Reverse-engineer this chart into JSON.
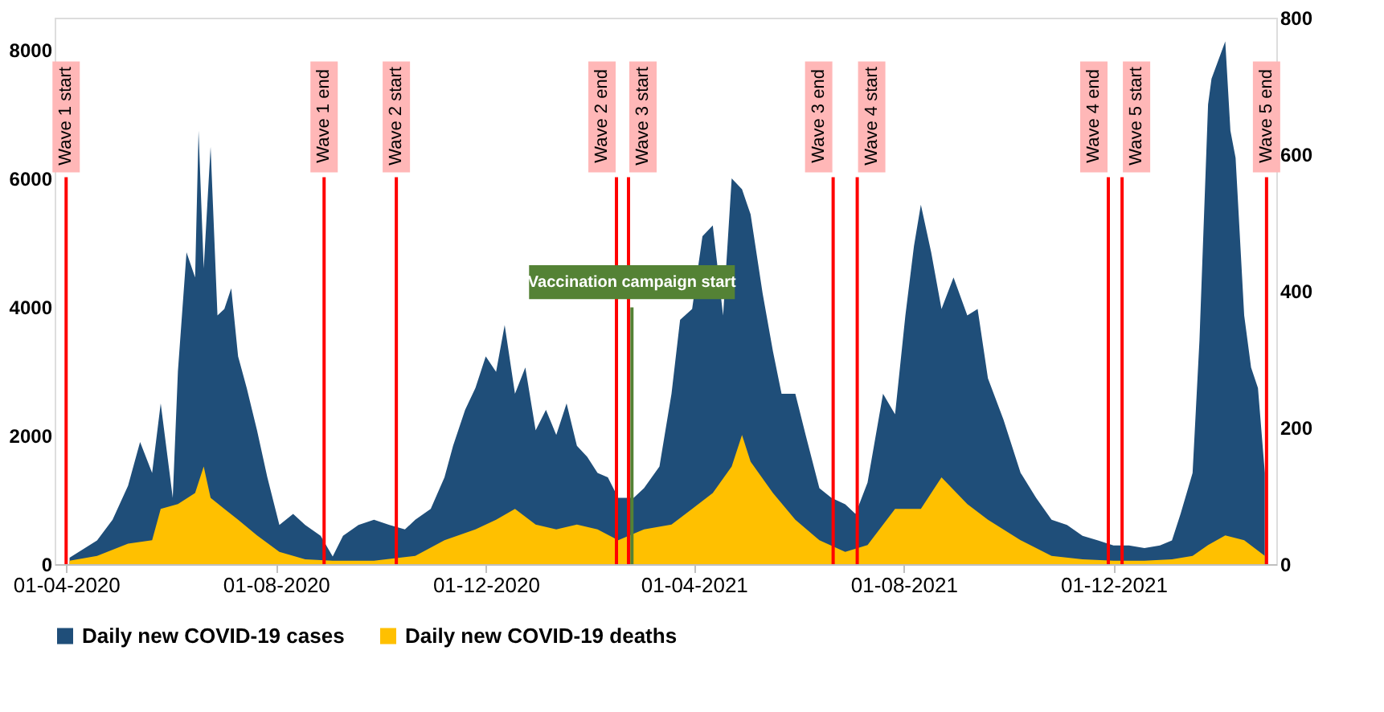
{
  "chart_data": {
    "type": "area",
    "xlim": [
      "2020-03-30",
      "2022-03-01"
    ],
    "xticks": [
      {
        "value": "2020-04-01",
        "label": "01-04-2020"
      },
      {
        "value": "2020-08-01",
        "label": "01-08-2020"
      },
      {
        "value": "2020-12-01",
        "label": "01-12-2020"
      },
      {
        "value": "2021-04-01",
        "label": "01-04-2021"
      },
      {
        "value": "2021-08-01",
        "label": "01-08-2021"
      },
      {
        "value": "2021-12-01",
        "label": "01-12-2021"
      }
    ],
    "ylim": [
      0,
      8500
    ],
    "yticks": [
      0,
      2000,
      4000,
      6000,
      8000
    ],
    "y2lim": [
      0,
      800
    ],
    "y2ticks": [
      0,
      200,
      400,
      600,
      800
    ],
    "grid": false,
    "legend": "bottom",
    "x": [
      "2020-04-03",
      "2020-04-19",
      "2020-04-28",
      "2020-05-07",
      "2020-05-14",
      "2020-05-21",
      "2020-05-26",
      "2020-06-02",
      "2020-06-05",
      "2020-06-10",
      "2020-06-15",
      "2020-06-17",
      "2020-06-20",
      "2020-06-24",
      "2020-06-28",
      "2020-07-02",
      "2020-07-06",
      "2020-07-10",
      "2020-07-15",
      "2020-07-21",
      "2020-07-27",
      "2020-08-03",
      "2020-08-11",
      "2020-08-18",
      "2020-08-27",
      "2020-09-03",
      "2020-09-09",
      "2020-09-18",
      "2020-09-27",
      "2020-10-06",
      "2020-10-15",
      "2020-10-21",
      "2020-10-30",
      "2020-11-07",
      "2020-11-12",
      "2020-11-19",
      "2020-11-25",
      "2020-12-01",
      "2020-12-07",
      "2020-12-12",
      "2020-12-18",
      "2020-12-24",
      "2020-12-30",
      "2021-01-05",
      "2021-01-11",
      "2021-01-17",
      "2021-01-23",
      "2021-01-29",
      "2021-02-04",
      "2021-02-10",
      "2021-02-16",
      "2021-02-25",
      "2021-03-03",
      "2021-03-12",
      "2021-03-19",
      "2021-03-24",
      "2021-03-31",
      "2021-04-06",
      "2021-04-12",
      "2021-04-18",
      "2021-04-23",
      "2021-04-29",
      "2021-05-04",
      "2021-05-11",
      "2021-05-17",
      "2021-05-22",
      "2021-05-30",
      "2021-06-05",
      "2021-06-13",
      "2021-06-20",
      "2021-06-28",
      "2021-07-04",
      "2021-07-11",
      "2021-07-20",
      "2021-07-27",
      "2021-08-02",
      "2021-08-07",
      "2021-08-11",
      "2021-08-17",
      "2021-08-23",
      "2021-08-30",
      "2021-09-07",
      "2021-09-13",
      "2021-09-19",
      "2021-09-28",
      "2021-10-08",
      "2021-10-17",
      "2021-10-26",
      "2021-11-04",
      "2021-11-13",
      "2021-11-22",
      "2021-12-01",
      "2021-12-10",
      "2021-12-19",
      "2021-12-28",
      "2022-01-04",
      "2022-01-09",
      "2022-01-16",
      "2022-01-20",
      "2022-01-25",
      "2022-01-27",
      "2022-02-04",
      "2022-02-07",
      "2022-02-10",
      "2022-02-15",
      "2022-02-19",
      "2022-02-23",
      "2022-02-27"
    ],
    "series": [
      {
        "name": "Daily new COVID-19 cases",
        "color": "#1f4e79",
        "values": [
          100,
          370,
          690,
          1220,
          1900,
          1420,
          2500,
          1030,
          3000,
          4850,
          4460,
          6740,
          4600,
          6490,
          3870,
          3970,
          4290,
          3230,
          2740,
          2080,
          1350,
          610,
          780,
          610,
          440,
          120,
          440,
          610,
          690,
          610,
          540,
          690,
          860,
          1350,
          1840,
          2400,
          2740,
          3230,
          2990,
          3720,
          2650,
          3060,
          2080,
          2400,
          2010,
          2500,
          1840,
          1670,
          1420,
          1350,
          1030,
          1030,
          1180,
          1520,
          2650,
          3800,
          3970,
          5100,
          5270,
          3870,
          6000,
          5830,
          5440,
          4210,
          3310,
          2650,
          2650,
          2010,
          1180,
          1030,
          930,
          780,
          1270,
          2650,
          2330,
          3870,
          4950,
          5590,
          4850,
          3970,
          4460,
          3870,
          3970,
          2890,
          2250,
          1420,
          1030,
          690,
          610,
          440,
          370,
          290,
          290,
          250,
          290,
          370,
          780,
          1420,
          3480,
          7150,
          7550,
          8130,
          6740,
          6320,
          3870,
          3060,
          2740,
          1420
        ]
      },
      {
        "name": "Daily new COVID-19 deaths",
        "color": "#ffc000",
        "axis": "y2",
        "x": [
          "2020-04-03",
          "2020-04-19",
          "2020-05-07",
          "2020-05-21",
          "2020-05-26",
          "2020-06-05",
          "2020-06-15",
          "2020-06-20",
          "2020-06-24",
          "2020-07-02",
          "2020-07-10",
          "2020-07-21",
          "2020-08-03",
          "2020-08-18",
          "2020-09-03",
          "2020-09-27",
          "2020-10-21",
          "2020-11-07",
          "2020-11-25",
          "2020-12-07",
          "2020-12-18",
          "2020-12-30",
          "2021-01-11",
          "2021-01-23",
          "2021-02-04",
          "2021-02-16",
          "2021-03-03",
          "2021-03-19",
          "2021-03-31",
          "2021-04-12",
          "2021-04-23",
          "2021-04-29",
          "2021-05-04",
          "2021-05-17",
          "2021-05-30",
          "2021-06-13",
          "2021-06-28",
          "2021-07-11",
          "2021-07-27",
          "2021-08-11",
          "2021-08-23",
          "2021-09-07",
          "2021-09-19",
          "2021-10-08",
          "2021-10-26",
          "2021-11-13",
          "2021-12-01",
          "2021-12-19",
          "2022-01-04",
          "2022-01-16",
          "2022-01-25",
          "2022-02-04",
          "2022-02-15",
          "2022-02-27"
        ],
        "values": [
          5,
          12,
          30,
          35,
          81,
          88,
          104,
          143,
          97,
          81,
          65,
          42,
          18,
          7,
          5,
          5,
          12,
          35,
          51,
          65,
          81,
          58,
          51,
          58,
          51,
          35,
          51,
          58,
          81,
          104,
          143,
          189,
          150,
          104,
          65,
          35,
          18,
          28,
          81,
          81,
          127,
          88,
          65,
          35,
          12,
          7,
          5,
          5,
          7,
          12,
          28,
          42,
          35,
          12
        ]
      }
    ],
    "ref_lines": [
      {
        "axis": "x",
        "value": "2020-04-01",
        "label": "Wave 1 start",
        "color": "#ff0000"
      },
      {
        "axis": "x",
        "value": "2020-08-29",
        "label": "Wave 1 end",
        "color": "#ff0000"
      },
      {
        "axis": "x",
        "value": "2020-10-10",
        "label": "Wave 2 start",
        "color": "#ff0000"
      },
      {
        "axis": "x",
        "value": "2021-02-15",
        "label": "Wave 2 end",
        "color": "#ff0000"
      },
      {
        "axis": "x",
        "value": "2021-02-22",
        "label": "Wave 3 start",
        "color": "#ff0000"
      },
      {
        "axis": "x",
        "value": "2021-06-21",
        "label": "Wave 3 end",
        "color": "#ff0000"
      },
      {
        "axis": "x",
        "value": "2021-07-05",
        "label": "Wave 4 start",
        "color": "#ff0000"
      },
      {
        "axis": "x",
        "value": "2021-11-28",
        "label": "Wave 4 end",
        "color": "#ff0000"
      },
      {
        "axis": "x",
        "value": "2021-12-06",
        "label": "Wave 5 start",
        "color": "#ff0000"
      },
      {
        "axis": "x",
        "value": "2022-02-28",
        "label": "Wave 5 end",
        "color": "#ff0000"
      },
      {
        "axis": "x",
        "value": "2021-02-24",
        "label": "Vaccination campaign start",
        "color": "#548235"
      }
    ]
  }
}
